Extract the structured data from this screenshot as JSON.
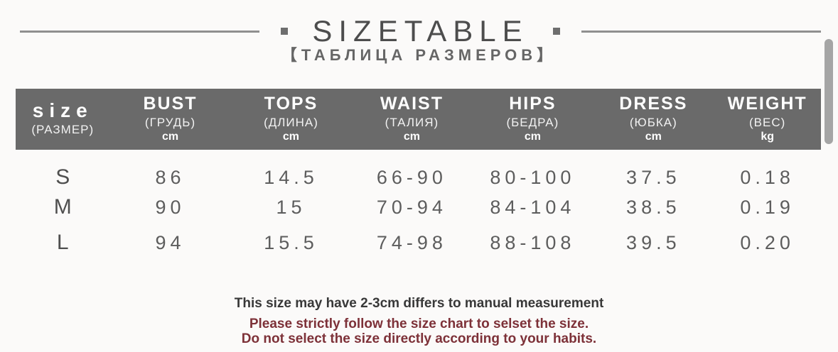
{
  "title": {
    "main": "SIZETABLE",
    "sub": "【ТАБЛИЦА РАЗМЕРОВ】"
  },
  "table": {
    "columns": [
      {
        "en": "size",
        "ru": "(РАЗМЕР)",
        "unit": ""
      },
      {
        "en": "BUST",
        "ru": "(ГРУДЬ)",
        "unit": "cm"
      },
      {
        "en": "TOPS",
        "ru": "(ДЛИНА)",
        "unit": "cm"
      },
      {
        "en": "WAIST",
        "ru": "(ТАЛИЯ)",
        "unit": "cm"
      },
      {
        "en": "HIPS",
        "ru": "(БЕДРА)",
        "unit": "cm"
      },
      {
        "en": "DRESS",
        "ru": "(ЮБКА)",
        "unit": "cm"
      },
      {
        "en": "WEIGHT",
        "ru": "(ВЕС)",
        "unit": "kg"
      }
    ],
    "rows": [
      [
        "S",
        "86",
        "14.5",
        "66-90",
        "80-100",
        "37.5",
        "0.18"
      ],
      [
        "M",
        "90",
        "15",
        "70-94",
        "84-104",
        "38.5",
        "0.19"
      ],
      [
        "L",
        "94",
        "15.5",
        "74-98",
        "88-108",
        "39.5",
        "0.20"
      ]
    ]
  },
  "notes": {
    "line1": "This size may have 2-3cm differs to manual measurement",
    "line2": "Please strictly follow the size chart to selset the size.",
    "line3": "Do not select the size directly according to your habits."
  },
  "colors": {
    "header_bg": "#6a6a6a",
    "header_text": "#ffffff",
    "value_text": "#5d5d5d",
    "note_text": "#383838",
    "note_warning": "#7d3138",
    "scrollbar": "#a5a5a5"
  }
}
